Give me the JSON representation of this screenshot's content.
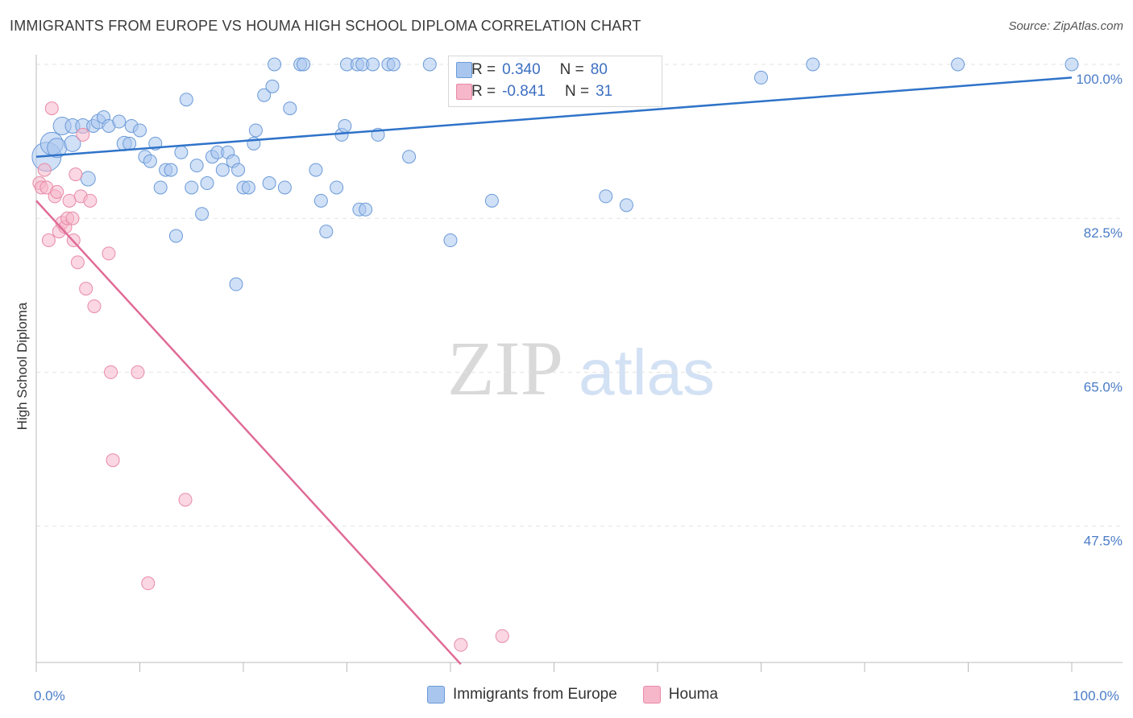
{
  "header": {
    "title": "IMMIGRANTS FROM EUROPE VS HOUMA HIGH SCHOOL DIPLOMA CORRELATION CHART",
    "source": "Source: ZipAtlas.com"
  },
  "watermark": {
    "zip": "ZIP",
    "atlas": "atlas"
  },
  "legend": {
    "rows": [
      {
        "r_label": "R =",
        "r_value": "0.340",
        "n_label": "N =",
        "n_value": "80"
      },
      {
        "r_label": "R =",
        "r_value": "-0.841",
        "n_label": "N =",
        "n_value": "31"
      }
    ]
  },
  "bottom_legend": {
    "items": [
      {
        "label": "Immigrants from Europe"
      },
      {
        "label": "Houma"
      }
    ]
  },
  "chart_data": {
    "type": "scatter",
    "ylabel": "High School Diploma",
    "xlabel": "",
    "xlim": [
      0,
      100
    ],
    "ylim": [
      32,
      100
    ],
    "y_ticks": [
      {
        "value": 100,
        "label": "100.0%"
      },
      {
        "value": 82.5,
        "label": "82.5%"
      },
      {
        "value": 65,
        "label": "65.0%"
      },
      {
        "value": 47.5,
        "label": "47.5%"
      }
    ],
    "x_ticks": [
      {
        "value": 0,
        "label": "0.0%"
      },
      {
        "value": 100,
        "label": "100.0%"
      }
    ],
    "grid": true,
    "legend_position": "top-center",
    "colors": {
      "blue_fill": "#a9c6ef",
      "blue_stroke": "#6b9ad8",
      "blue_line": "#2f73c9",
      "pink_fill": "#f6b7cb",
      "pink_stroke": "#e88aa8",
      "pink_line": "#e06b97"
    },
    "series": [
      {
        "name": "Immigrants from Europe",
        "r": 0.34,
        "n": 80,
        "trend": {
          "x": [
            0,
            100
          ],
          "y": [
            89.5,
            98.5
          ]
        },
        "points": [
          [
            1,
            89.5,
            18
          ],
          [
            1.5,
            91,
            14
          ],
          [
            2,
            90.5,
            12
          ],
          [
            2.5,
            93,
            11
          ],
          [
            3.5,
            91,
            10
          ],
          [
            3.5,
            93,
            9
          ],
          [
            4.5,
            93,
            9
          ],
          [
            5,
            87,
            9
          ],
          [
            5.5,
            93,
            8
          ],
          [
            6,
            93.5,
            9
          ],
          [
            6.5,
            94,
            8
          ],
          [
            7,
            93,
            8
          ],
          [
            8,
            93.5,
            8
          ],
          [
            8.5,
            91,
            9
          ],
          [
            9,
            91,
            8
          ],
          [
            9.2,
            93,
            8
          ],
          [
            10,
            92.5,
            8
          ],
          [
            10.5,
            89.5,
            8
          ],
          [
            11,
            89,
            8
          ],
          [
            11.5,
            91,
            8
          ],
          [
            12,
            86,
            8
          ],
          [
            12.5,
            88,
            8
          ],
          [
            13,
            88,
            8
          ],
          [
            13.5,
            80.5,
            8
          ],
          [
            14,
            90,
            8
          ],
          [
            14.5,
            96,
            8
          ],
          [
            15,
            86,
            8
          ],
          [
            15.5,
            88.5,
            8
          ],
          [
            16,
            83,
            8
          ],
          [
            16.5,
            86.5,
            8
          ],
          [
            17,
            89.5,
            8
          ],
          [
            17.5,
            90,
            8
          ],
          [
            18,
            88,
            8
          ],
          [
            18.5,
            90,
            8
          ],
          [
            19,
            89,
            8
          ],
          [
            19.5,
            88,
            8
          ],
          [
            19.3,
            75,
            8
          ],
          [
            20,
            86,
            8
          ],
          [
            20.5,
            86,
            8
          ],
          [
            21,
            91,
            8
          ],
          [
            21.2,
            92.5,
            8
          ],
          [
            22,
            96.5,
            8
          ],
          [
            22.5,
            86.5,
            8
          ],
          [
            22.8,
            97.5,
            8
          ],
          [
            23,
            100,
            8
          ],
          [
            24,
            86,
            8
          ],
          [
            24.5,
            95,
            8
          ],
          [
            25.5,
            100,
            8
          ],
          [
            25.8,
            100,
            8
          ],
          [
            27,
            88,
            8
          ],
          [
            27.5,
            84.5,
            8
          ],
          [
            28,
            81,
            8
          ],
          [
            29,
            86,
            8
          ],
          [
            29.5,
            92,
            8
          ],
          [
            29.8,
            93,
            8
          ],
          [
            30,
            100,
            8
          ],
          [
            31,
            100,
            8
          ],
          [
            31.5,
            100,
            8
          ],
          [
            31.2,
            83.5,
            8
          ],
          [
            31.8,
            83.5,
            8
          ],
          [
            32.5,
            100,
            8
          ],
          [
            33,
            92,
            8
          ],
          [
            34,
            100,
            8
          ],
          [
            34.5,
            100,
            8
          ],
          [
            36,
            89.5,
            8
          ],
          [
            38,
            100,
            8
          ],
          [
            40,
            80,
            8
          ],
          [
            44,
            84.5,
            8
          ],
          [
            47,
            100,
            8
          ],
          [
            55,
            85,
            8
          ],
          [
            57,
            84,
            8
          ],
          [
            70,
            98.5,
            8
          ],
          [
            75,
            100,
            8
          ],
          [
            89,
            100,
            8
          ],
          [
            100,
            100,
            8
          ]
        ]
      },
      {
        "name": "Houma",
        "r": -0.841,
        "n": 31,
        "trend": {
          "x": [
            0,
            41
          ],
          "y": [
            84.5,
            31.8
          ]
        },
        "points": [
          [
            0.3,
            86.5,
            8
          ],
          [
            0.5,
            86,
            8
          ],
          [
            0.8,
            88,
            8
          ],
          [
            1,
            86,
            8
          ],
          [
            1.2,
            80,
            8
          ],
          [
            1.5,
            95,
            8
          ],
          [
            1.8,
            85,
            8
          ],
          [
            2,
            85.5,
            8
          ],
          [
            2.2,
            81,
            8
          ],
          [
            2.5,
            82,
            8
          ],
          [
            2.8,
            81.5,
            8
          ],
          [
            3,
            82.5,
            8
          ],
          [
            3.2,
            84.5,
            8
          ],
          [
            3.5,
            82.5,
            8
          ],
          [
            3.6,
            80,
            8
          ],
          [
            3.8,
            87.5,
            8
          ],
          [
            4,
            77.5,
            8
          ],
          [
            4.3,
            85,
            8
          ],
          [
            4.5,
            92,
            8
          ],
          [
            4.8,
            74.5,
            8
          ],
          [
            5.2,
            84.5,
            8
          ],
          [
            5.6,
            72.5,
            8
          ],
          [
            7,
            78.5,
            8
          ],
          [
            7.2,
            65,
            8
          ],
          [
            7.4,
            55,
            8
          ],
          [
            9.8,
            65,
            8
          ],
          [
            10.8,
            41,
            8
          ],
          [
            14.4,
            50.5,
            8
          ],
          [
            41,
            34,
            8
          ],
          [
            45,
            35,
            8
          ]
        ]
      }
    ]
  }
}
